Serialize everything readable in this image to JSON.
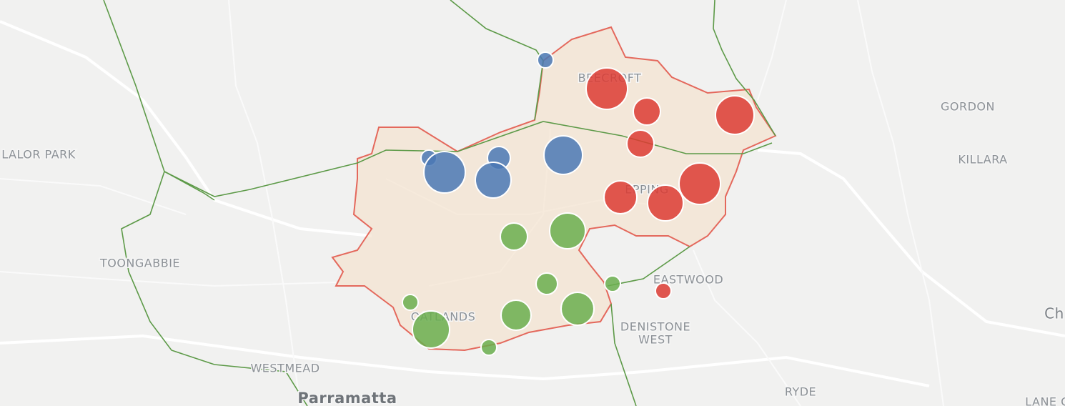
{
  "labels": [
    "BEECROFT",
    "EPPING",
    "GORDON",
    "KILLARA",
    "LALOR PARK",
    "TOONGABBIE",
    "OATLANDS",
    "EASTWOOD",
    "DENISTONE",
    "WEST",
    "WESTMEAD",
    "Parramatta",
    "RYDE",
    "Ch",
    "LANE C"
  ]
}
